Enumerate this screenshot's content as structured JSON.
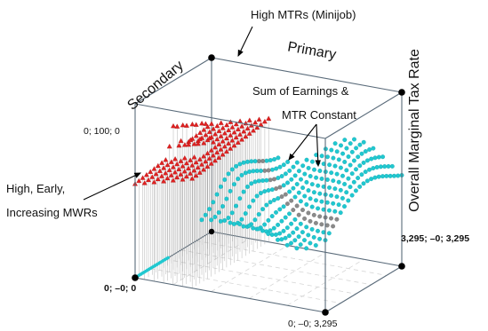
{
  "chart_data": {
    "type": "scatter",
    "axis_labels": {
      "secondary": "Secondary",
      "primary": "Primary",
      "z": "Overall Marginal Tax Rate"
    },
    "corner_labels": {
      "origin": "0; –0; 0",
      "top_left": "0; 100; 0",
      "front_right": "0; –0; 3,295",
      "back_right": "3,295; –0; 3,295"
    },
    "annotations": {
      "minijob": "High MTRs (Minijob)",
      "sum_line1": "Sum of Earnings &",
      "sum_line2": "MTR Constant",
      "high_line1": "High, Early,",
      "high_line2": "Increasing MWRs"
    },
    "ranges": {
      "secondary": [
        0,
        3295
      ],
      "primary": [
        0,
        3295
      ],
      "mtr": [
        0,
        100
      ]
    },
    "grid": 20,
    "series": [
      {
        "color": "#e02020",
        "marker": "triangle"
      },
      {
        "color": "#20c8d0",
        "marker": "circle"
      },
      {
        "color": "#8a8a8a",
        "marker": "circle"
      }
    ],
    "colors": {
      "box": "#5a6b7a",
      "floor_grid": "#d6d6d6",
      "stem": "#9a9a9a"
    }
  }
}
